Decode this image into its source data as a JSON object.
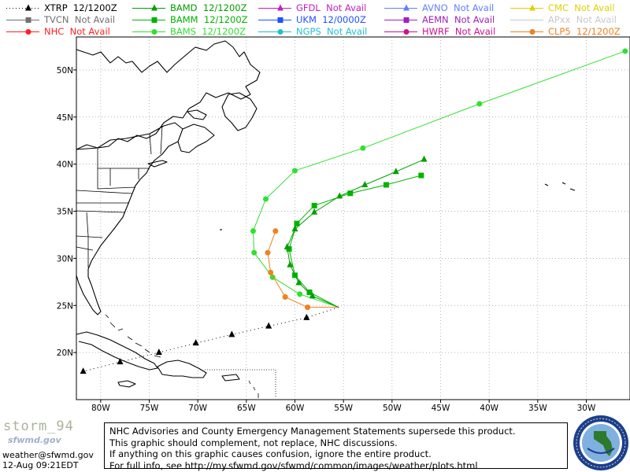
{
  "legend": [
    {
      "id": "xtrp",
      "name": "XTRP",
      "status": "12/1200Z",
      "color": "#000000",
      "marker": "triangle",
      "dash": true
    },
    {
      "id": "tvcn",
      "name": "TVCN",
      "status": "Not Avail",
      "color": "#707070",
      "marker": "square",
      "dash": false
    },
    {
      "id": "nhc",
      "name": "NHC",
      "status": "Not Avail",
      "color": "#ff2020",
      "marker": "circle",
      "dash": false
    },
    {
      "id": "bamd",
      "name": "BAMD",
      "status": "12/1200Z",
      "color": "#00a000",
      "marker": "triangle",
      "dash": false
    },
    {
      "id": "bamm",
      "name": "BAMM",
      "status": "12/1200Z",
      "color": "#00b400",
      "marker": "square",
      "dash": false
    },
    {
      "id": "bams",
      "name": "BAMS",
      "status": "12/1200Z",
      "color": "#30e030",
      "marker": "circle",
      "dash": false
    },
    {
      "id": "gfdl",
      "name": "GFDL",
      "status": "Not Avail",
      "color": "#c020c0",
      "marker": "triangle",
      "dash": false
    },
    {
      "id": "ukm",
      "name": "UKM",
      "status": "12/0000Z",
      "color": "#2050ff",
      "marker": "square",
      "dash": false
    },
    {
      "id": "ngps",
      "name": "NGPS",
      "status": "Not Avail",
      "color": "#20c0d0",
      "marker": "circle",
      "dash": false
    },
    {
      "id": "avno",
      "name": "AVNO",
      "status": "Not Avail",
      "color": "#6080ff",
      "marker": "triangle",
      "dash": false
    },
    {
      "id": "aemn",
      "name": "AEMN",
      "status": "Not Avail",
      "color": "#a020c0",
      "marker": "square",
      "dash": false
    },
    {
      "id": "hwrf",
      "name": "HWRF",
      "status": "Not Avail",
      "color": "#d01090",
      "marker": "circle",
      "dash": false
    },
    {
      "id": "cmc",
      "name": "CMC",
      "status": "Not Avail",
      "color": "#e0d000",
      "marker": "triangle",
      "dash": false
    },
    {
      "id": "apxx",
      "name": "APxx",
      "status": "Not Avail",
      "color": "#c8c8c8",
      "marker": "none",
      "dash": false
    },
    {
      "id": "clp5",
      "name": "CLP5",
      "status": "12/1200Z",
      "color": "#f08020",
      "marker": "circle",
      "dash": false
    }
  ],
  "axes": {
    "lon_labels": [
      "80W",
      "75W",
      "70W",
      "65W",
      "60W",
      "55W",
      "50W",
      "45W",
      "40W",
      "35W",
      "30W"
    ],
    "lat_labels": [
      "50N",
      "45N",
      "40N",
      "35N",
      "30N",
      "25N",
      "20N"
    ],
    "lon_range": [
      -82.5,
      -25.5
    ],
    "lat_range": [
      15.0,
      53.5
    ]
  },
  "tracks": {
    "xtrp": {
      "color": "#000000",
      "marker": "triangle",
      "dash": true,
      "points": [
        [
          -55.5,
          24.8
        ],
        [
          -58.8,
          23.7
        ],
        [
          -62.7,
          22.8
        ],
        [
          -66.5,
          21.9
        ],
        [
          -70.2,
          21.0
        ],
        [
          -74.0,
          20.0
        ],
        [
          -78.0,
          19.0
        ],
        [
          -81.8,
          18.0
        ]
      ]
    },
    "bamd": {
      "color": "#00a000",
      "marker": "triangle",
      "points": [
        [
          -55.5,
          24.8
        ],
        [
          -58.2,
          26.0
        ],
        [
          -59.6,
          27.4
        ],
        [
          -60.5,
          29.3
        ],
        [
          -60.8,
          31.2
        ],
        [
          -60.0,
          33.1
        ],
        [
          -58.0,
          34.9
        ],
        [
          -55.4,
          36.6
        ],
        [
          -52.8,
          37.8
        ],
        [
          -49.6,
          39.2
        ],
        [
          -46.7,
          40.5
        ]
      ]
    },
    "bamm": {
      "color": "#00b400",
      "marker": "square",
      "points": [
        [
          -55.5,
          24.8
        ],
        [
          -58.5,
          26.4
        ],
        [
          -60.0,
          28.2
        ],
        [
          -60.6,
          31.0
        ],
        [
          -59.8,
          33.7
        ],
        [
          -58.0,
          35.6
        ],
        [
          -54.3,
          36.9
        ],
        [
          -50.6,
          37.8
        ],
        [
          -47.0,
          38.8
        ]
      ]
    },
    "bams": {
      "color": "#30e030",
      "marker": "circle",
      "points": [
        [
          -55.5,
          24.8
        ],
        [
          -59.5,
          26.2
        ],
        [
          -62.3,
          28.0
        ],
        [
          -64.2,
          30.6
        ],
        [
          -64.3,
          32.9
        ],
        [
          -63.0,
          36.3
        ],
        [
          -60.0,
          39.3
        ],
        [
          -53.0,
          41.7
        ],
        [
          -41.0,
          46.4
        ],
        [
          -26.0,
          52.0
        ]
      ]
    },
    "clp5": {
      "color": "#f08020",
      "marker": "circle",
      "points": [
        [
          -55.5,
          24.8
        ],
        [
          -58.7,
          24.8
        ],
        [
          -61.0,
          25.9
        ],
        [
          -62.5,
          28.5
        ],
        [
          -62.8,
          30.6
        ],
        [
          -62.0,
          32.9
        ]
      ]
    }
  },
  "disclaimer": [
    "NHC Advisories and County Emergency Management Statements supersede this product.",
    "This graphic should complement, not replace, NHC discussions.",
    "If anything on this graphic causes confusion, ignore the entire product.",
    "For full info, see  http://my.sfwmd.gov/sfwmd/common/images/weather/plots.html"
  ],
  "branding": {
    "logo": "storm_94",
    "logo_sub": "sfwmd.gov",
    "email": "weather@sfwmd.gov",
    "timestamp": "12-Aug 09:21EDT"
  }
}
